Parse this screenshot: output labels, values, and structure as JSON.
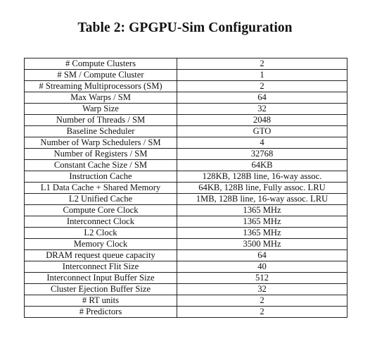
{
  "caption": "Table 2: GPGPU-Sim Configuration",
  "rows": [
    {
      "parameter": "# Compute Clusters",
      "value": "2"
    },
    {
      "parameter": "# SM / Compute Cluster",
      "value": "1"
    },
    {
      "parameter": "# Streaming Multiprocessors (SM)",
      "value": "2"
    },
    {
      "parameter": "Max Warps / SM",
      "value": "64"
    },
    {
      "parameter": "Warp Size",
      "value": "32"
    },
    {
      "parameter": "Number of Threads / SM",
      "value": "2048"
    },
    {
      "parameter": "Baseline Scheduler",
      "value": "GTO"
    },
    {
      "parameter": "Number of Warp Schedulers / SM",
      "value": "4"
    },
    {
      "parameter": "Number of Registers / SM",
      "value": "32768"
    },
    {
      "parameter": "Constant Cache Size / SM",
      "value": "64KB"
    },
    {
      "parameter": "Instruction Cache",
      "value": "128KB, 128B line, 16-way assoc."
    },
    {
      "parameter": "L1 Data Cache + Shared Memory",
      "value": "64KB, 128B line, Fully assoc. LRU"
    },
    {
      "parameter": "L2 Unified Cache",
      "value": "1MB, 128B line, 16-way assoc. LRU"
    },
    {
      "parameter": "Compute Core Clock",
      "value": "1365 MHz"
    },
    {
      "parameter": "Interconnect Clock",
      "value": "1365 MHz"
    },
    {
      "parameter": "L2 Clock",
      "value": "1365 MHz"
    },
    {
      "parameter": "Memory Clock",
      "value": "3500 MHz"
    },
    {
      "parameter": "DRAM request queue capacity",
      "value": "64"
    },
    {
      "parameter": "Interconnect Flit Size",
      "value": "40"
    },
    {
      "parameter": "Interconnect Input Buffer Size",
      "value": "512"
    },
    {
      "parameter": "Cluster Ejection Buffer Size",
      "value": "32"
    },
    {
      "parameter": "# RT units",
      "value": "2"
    },
    {
      "parameter": "# Predictors",
      "value": "2"
    }
  ]
}
